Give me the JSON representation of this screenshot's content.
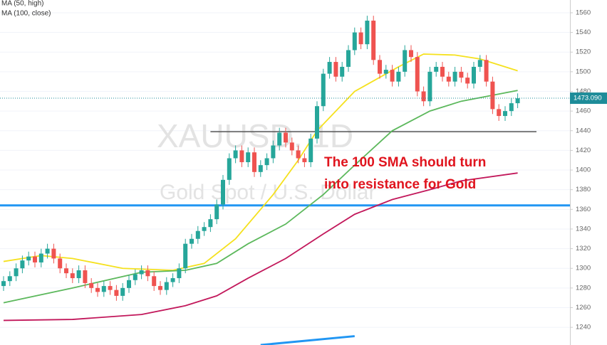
{
  "chart_data": {
    "type": "candlestick",
    "watermark": [
      "XAUUSD, 1D",
      "Gold Spot / U.S. Dollar"
    ],
    "annotation": [
      "The 100 SMA should turn",
      "into resistance for Gold"
    ],
    "up_color": "#26a69a",
    "down_color": "#ef5350",
    "ylim": [
      1222,
      1573
    ],
    "yticks": [
      1240,
      1260,
      1280,
      1300,
      1320,
      1340,
      1360,
      1380,
      1400,
      1420,
      1440,
      1460,
      1480,
      1500,
      1520,
      1540,
      1560
    ],
    "last_price": {
      "value": 1473.09,
      "label": "1473.090",
      "color": "#1e8c99"
    },
    "open": [
      1282,
      1287,
      1292,
      1300,
      1308,
      1312,
      1306,
      1315,
      1320,
      1310,
      1300,
      1295,
      1290,
      1298,
      1285,
      1280,
      1276,
      1282,
      1278,
      1272,
      1280,
      1288,
      1294,
      1298,
      1292,
      1282,
      1278,
      1286,
      1290,
      1300,
      1325,
      1330,
      1338,
      1342,
      1350,
      1365,
      1390,
      1412,
      1420,
      1408,
      1418,
      1398,
      1405,
      1412,
      1425,
      1438,
      1428,
      1420,
      1412,
      1408,
      1432,
      1465,
      1498,
      1510,
      1495,
      1505,
      1522,
      1540,
      1528,
      1552,
      1512,
      1498,
      1502,
      1490,
      1500,
      1522,
      1515,
      1480,
      1470,
      1500,
      1505,
      1495,
      1490,
      1500,
      1494,
      1488,
      1505,
      1512,
      1490,
      1462,
      1455,
      1460,
      1468
    ],
    "high": [
      1292,
      1297,
      1305,
      1313,
      1317,
      1317,
      1320,
      1325,
      1325,
      1315,
      1305,
      1300,
      1303,
      1303,
      1290,
      1285,
      1287,
      1287,
      1283,
      1285,
      1293,
      1299,
      1303,
      1303,
      1297,
      1287,
      1291,
      1295,
      1305,
      1330,
      1335,
      1343,
      1347,
      1355,
      1370,
      1395,
      1417,
      1425,
      1425,
      1423,
      1423,
      1410,
      1417,
      1430,
      1443,
      1443,
      1433,
      1425,
      1417,
      1437,
      1470,
      1503,
      1515,
      1515,
      1510,
      1527,
      1545,
      1545,
      1557,
      1557,
      1517,
      1507,
      1507,
      1505,
      1527,
      1527,
      1520,
      1485,
      1505,
      1510,
      1510,
      1500,
      1505,
      1505,
      1499,
      1510,
      1517,
      1517,
      1495,
      1467,
      1465,
      1473,
      1478
    ],
    "low": [
      1277,
      1282,
      1287,
      1295,
      1303,
      1301,
      1301,
      1310,
      1305,
      1295,
      1290,
      1285,
      1285,
      1280,
      1275,
      1271,
      1271,
      1273,
      1267,
      1267,
      1275,
      1283,
      1289,
      1287,
      1277,
      1273,
      1273,
      1281,
      1285,
      1295,
      1320,
      1325,
      1333,
      1337,
      1345,
      1360,
      1385,
      1407,
      1403,
      1403,
      1393,
      1393,
      1400,
      1407,
      1420,
      1423,
      1415,
      1407,
      1403,
      1403,
      1427,
      1460,
      1493,
      1490,
      1490,
      1500,
      1517,
      1523,
      1523,
      1507,
      1493,
      1493,
      1485,
      1485,
      1495,
      1510,
      1475,
      1465,
      1465,
      1495,
      1490,
      1485,
      1485,
      1489,
      1483,
      1483,
      1500,
      1485,
      1457,
      1450,
      1450,
      1455,
      1463
    ],
    "close": [
      1287,
      1292,
      1300,
      1308,
      1312,
      1306,
      1315,
      1320,
      1310,
      1300,
      1295,
      1290,
      1298,
      1285,
      1280,
      1276,
      1282,
      1278,
      1272,
      1280,
      1288,
      1294,
      1298,
      1292,
      1282,
      1278,
      1286,
      1290,
      1300,
      1325,
      1330,
      1338,
      1342,
      1350,
      1365,
      1390,
      1412,
      1420,
      1408,
      1418,
      1398,
      1405,
      1412,
      1425,
      1438,
      1428,
      1420,
      1412,
      1408,
      1432,
      1465,
      1498,
      1510,
      1495,
      1505,
      1522,
      1540,
      1528,
      1552,
      1512,
      1498,
      1502,
      1490,
      1500,
      1522,
      1515,
      1480,
      1470,
      1500,
      1505,
      1495,
      1490,
      1500,
      1494,
      1488,
      1505,
      1512,
      1490,
      1462,
      1455,
      1460,
      1468,
      1473
    ],
    "series": [
      {
        "name": "MA (50, high)",
        "color": "#f5e11e",
        "x": [
          1,
          7,
          12,
          20,
          28,
          33,
          38,
          44,
          48,
          51,
          57,
          64,
          68,
          73,
          77,
          83
        ],
        "values": [
          1307,
          1313,
          1310,
          1300,
          1298,
          1305,
          1330,
          1375,
          1410,
          1440,
          1480,
          1505,
          1518,
          1517,
          1513,
          1501
        ]
      },
      {
        "name": "MA (100, close)",
        "color": "#5cb85c",
        "x": [
          1,
          12,
          23,
          30,
          35,
          40,
          46,
          52,
          57,
          63,
          69,
          74,
          83
        ],
        "values": [
          1265,
          1280,
          1296,
          1298,
          1305,
          1325,
          1345,
          1375,
          1405,
          1440,
          1460,
          1470,
          1481
        ]
      },
      {
        "color": "#c2185b",
        "x": [
          1,
          12,
          23,
          30,
          35,
          40,
          46,
          52,
          57,
          63,
          69,
          74,
          83
        ],
        "values": [
          1247,
          1248,
          1253,
          1262,
          1272,
          1290,
          1310,
          1335,
          1355,
          1370,
          1380,
          1389,
          1397
        ]
      }
    ],
    "hlines": [
      {
        "color": "#2196f3",
        "x": [
          0,
          92
        ],
        "values": [
          1364,
          1364
        ]
      },
      {
        "color": "#555555",
        "x": [
          34,
          86
        ],
        "values": [
          1439,
          1439
        ]
      },
      {
        "color": "#2196f3",
        "x": [
          42,
          57
        ],
        "values": [
          1222,
          1231
        ]
      }
    ]
  }
}
